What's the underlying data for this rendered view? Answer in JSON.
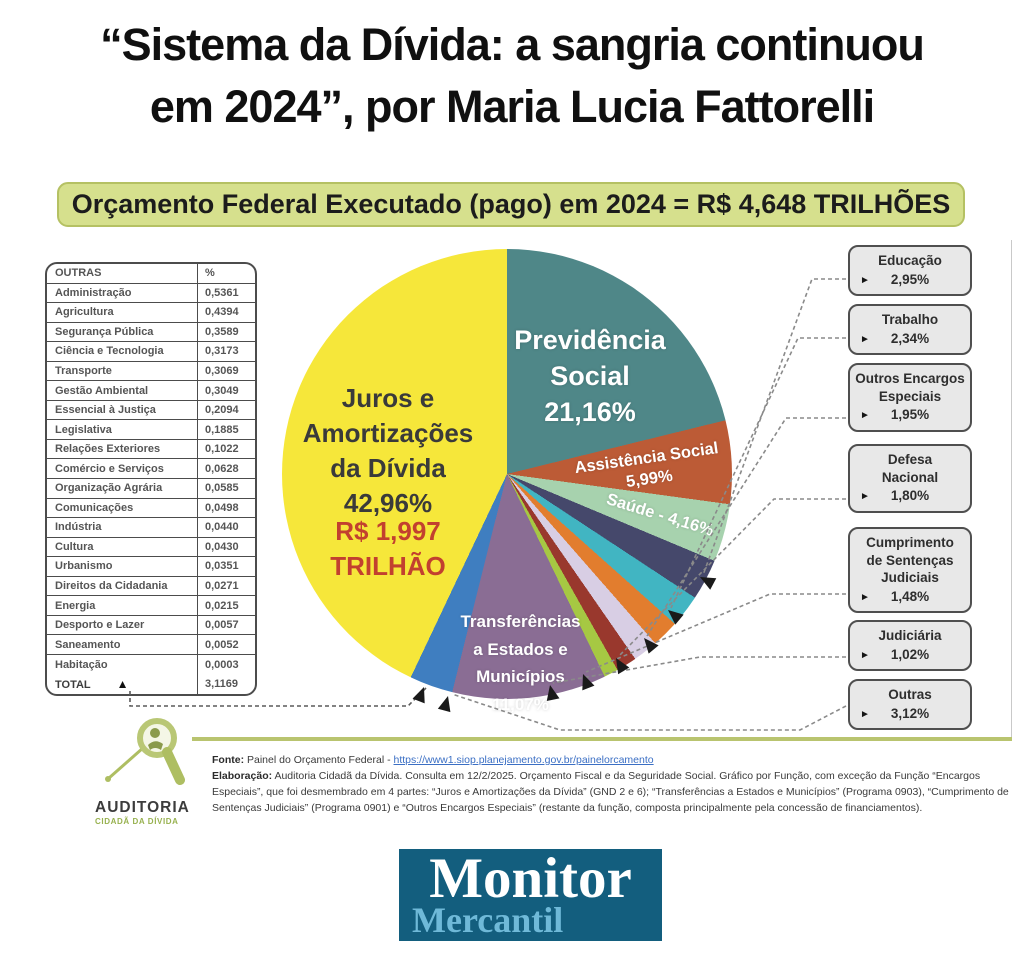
{
  "title": {
    "line1": "“Sistema da Dívida: a sangria continuou",
    "line2": "em 2024”, por Maria Lucia Fattorelli"
  },
  "banner": {
    "text": "Orçamento Federal Executado (pago) em 2024 = R$ 4,648 TRILHÕES"
  },
  "colors": {
    "banner_bg": "#d6e08d",
    "amount_red": "#c2402f",
    "monitor_bg": "#135e7e",
    "monitor_accent": "#6fb9d8",
    "auditoria_green": "#aebe62",
    "auditoria_green_dark": "#97b14e",
    "leader_gray": "#8a8a8a"
  },
  "outras_table": {
    "header": {
      "label": "OUTRAS",
      "value": "%"
    },
    "rows": [
      {
        "label": "Administração",
        "value": "0,5361"
      },
      {
        "label": "Agricultura",
        "value": "0,4394"
      },
      {
        "label": "Segurança Pública",
        "value": "0,3589"
      },
      {
        "label": "Ciência e Tecnologia",
        "value": "0,3173"
      },
      {
        "label": "Transporte",
        "value": "0,3069"
      },
      {
        "label": "Gestão Ambiental",
        "value": "0,3049"
      },
      {
        "label": "Essencial à Justiça",
        "value": "0,2094"
      },
      {
        "label": "Legislativa",
        "value": "0,1885"
      },
      {
        "label": "Relações Exteriores",
        "value": "0,1022"
      },
      {
        "label": "Comércio e Serviços",
        "value": "0,0628"
      },
      {
        "label": "Organização Agrária",
        "value": "0,0585"
      },
      {
        "label": "Comunicações",
        "value": "0,0498"
      },
      {
        "label": "Indústria",
        "value": "0,0440"
      },
      {
        "label": "Cultura",
        "value": "0,0430"
      },
      {
        "label": "Urbanismo",
        "value": "0,0351"
      },
      {
        "label": "Direitos da Cidadania",
        "value": "0,0271"
      },
      {
        "label": "Energia",
        "value": "0,0215"
      },
      {
        "label": "Desporto e Lazer",
        "value": "0,0057"
      },
      {
        "label": "Saneamento",
        "value": "0,0052"
      },
      {
        "label": "Habitação",
        "value": "0,0003"
      }
    ],
    "total": {
      "label": "TOTAL",
      "value": "3,1169"
    }
  },
  "chart_data": {
    "type": "pie",
    "title": "Orçamento Federal Executado (pago) em 2024 = R$ 4,648 TRILHÕES",
    "total": "R$ 4,648 TRILHÕES",
    "start_angle_deg": 0,
    "direction": "clockwise",
    "slices": [
      {
        "label": "Previdência Social",
        "value": 21.16,
        "display": "21,16%",
        "color": "#4f8788"
      },
      {
        "label": "Assistência Social",
        "value": 5.99,
        "display": "5,99%",
        "color": "#bc5b36"
      },
      {
        "label": "Saúde",
        "value": 4.16,
        "display": "4,16%",
        "color": "#a7d2ae"
      },
      {
        "label": "Educação",
        "value": 2.95,
        "display": "2,95%",
        "color": "#45486b"
      },
      {
        "label": "Trabalho",
        "value": 2.34,
        "display": "2,34%",
        "color": "#41b5c2"
      },
      {
        "label": "Outros Encargos Especiais",
        "value": 1.95,
        "display": "1,95%",
        "color": "#e27d2e"
      },
      {
        "label": "Defesa Nacional",
        "value": 1.8,
        "display": "1,80%",
        "color": "#d8cee4"
      },
      {
        "label": "Cumprimento de Sentenças Judiciais",
        "value": 1.48,
        "display": "1,48%",
        "color": "#99382d"
      },
      {
        "label": "Judiciária",
        "value": 1.02,
        "display": "1,02%",
        "color": "#a6c843"
      },
      {
        "label": "Transferências a Estados e Municípios",
        "value": 11.07,
        "display": "11,07%",
        "color": "#8a6d94"
      },
      {
        "label": "Outras",
        "value": 3.12,
        "display": "3,12%",
        "color": "#3f7ec0"
      },
      {
        "label": "Juros e Amortizações da Dívida",
        "value": 42.96,
        "display": "42,96%",
        "color": "#f6e73a",
        "sublabel": "R$ 1,997 TRILHÃO"
      }
    ]
  },
  "pie_labels": {
    "juros": {
      "l1": "Juros e",
      "l2": "Amortizações",
      "l3": "da Dívida",
      "pct": "42,96%",
      "amount1": "R$ 1,997",
      "amount2": "TRILHÃO"
    },
    "previdencia": {
      "l1": "Previdência",
      "l2": "Social",
      "pct": "21,16%"
    },
    "assistencia": {
      "l1": "Assistência Social",
      "pct": "5,99%"
    },
    "saude": {
      "text": "Saúde - 4,16%"
    },
    "transferencias": {
      "l1": "Transferências",
      "l2": "a Estados e",
      "l3": "Municípios",
      "pct": "11,07%"
    }
  },
  "callouts": [
    {
      "lines": [
        "Educação"
      ],
      "pct": "2,95%"
    },
    {
      "lines": [
        "Trabalho"
      ],
      "pct": "2,34%"
    },
    {
      "lines": [
        "Outros Encargos",
        "Especiais"
      ],
      "pct": "1,95%"
    },
    {
      "lines": [
        "Defesa",
        "Nacional"
      ],
      "pct": "1,80%"
    },
    {
      "lines": [
        "Cumprimento",
        "de Sentenças",
        "Judiciais"
      ],
      "pct": "1,48%"
    },
    {
      "lines": [
        "Judiciária"
      ],
      "pct": "1,02%"
    },
    {
      "lines": [
        "Outras"
      ],
      "pct": "3,12%"
    }
  ],
  "footer": {
    "source_label": "Fonte:",
    "source_text": "Painel do Orçamento Federal - ",
    "source_link": "https://www1.siop.planejamento.gov.br/painelorcamento",
    "elaboration_label": "Elaboração:",
    "elaboration_text": " Auditoria Cidadã da Dívida. Consulta em 12/2/2025. Orçamento Fiscal e da Seguridade Social. Gráfico por Função, com exceção da Função “Encargos Especiais”, que foi desmembrado em 4 partes: “Juros e Amortizações da Dívida” (GND 2 e 6); “Transferências a Estados e Municípios” (Programa 0903), “Cumprimento de Sentenças Judiciais” (Programa 0901) e “Outros Encargos Especiais” (restante da função, composta principalmente pela concessão de financiamentos)."
  },
  "logos": {
    "auditoria": {
      "line1": "AUDITORIA",
      "line2": "CIDADÃ DA DÍVIDA"
    },
    "monitor": {
      "line1": "Monitor",
      "line2": "Mercantil"
    }
  }
}
